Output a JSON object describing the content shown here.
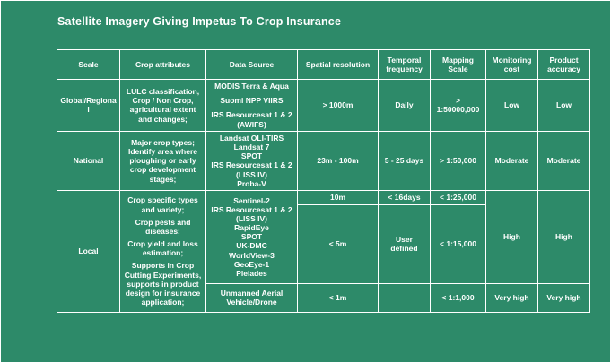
{
  "title": "Satellite Imagery Giving Impetus To Crop Insurance",
  "colors": {
    "background": "#2D8A69",
    "grid": "#FFFFFF",
    "text": "#FFFFFF"
  },
  "table": {
    "headers": [
      "Scale",
      "Crop attributes",
      "Data Source",
      "Spatial resolution",
      "Temporal frequency",
      "Mapping Scale",
      "Monitoring cost",
      "Product accuracy"
    ],
    "rows": {
      "global": {
        "scale": "Global/Regional",
        "attributes": "LULC classification, Crop / Non Crop, agricultural extent and changes;",
        "sources": [
          "MODIS Terra & Aqua",
          "Suomi NPP VIIRS",
          "IRS Resourcesat 1 & 2 (AWIFS)"
        ],
        "spatial": "> 1000m",
        "temporal": "Daily",
        "mapping": "> 1:50000,000",
        "cost": "Low",
        "accuracy": "Low"
      },
      "national": {
        "scale": "National",
        "attributes": "Major crop types; Identify area where ploughing or early crop development stages;",
        "sources": [
          "Landsat OLI-TIRS",
          "Landsat 7",
          "SPOT",
          "IRS Resourcesat 1 & 2 (LISS IV)",
          "Proba-V"
        ],
        "spatial": "23m - 100m",
        "temporal": "5 - 25 days",
        "mapping": "> 1:50,000",
        "cost": "Moderate",
        "accuracy": "Moderate"
      },
      "local": {
        "scale": "Local",
        "attributes": [
          "Crop specific types and variety;",
          "Crop pests and diseases;",
          "Crop yield and loss estimation;",
          "Supports in Crop Cutting Experiments, supports in product design for insurance application;"
        ],
        "satellite_sources": [
          "Sentinel-2",
          "IRS Resourcesat 1 & 2 (LISS IV)",
          "RapidEye",
          "SPOT",
          "UK-DMC",
          "WorldView-3",
          "GeoEye-1",
          "Pleiades"
        ],
        "sub_10m": {
          "spatial": "10m",
          "temporal": "< 16days",
          "mapping": "< 1:25,000"
        },
        "sub_5m": {
          "spatial": "< 5m",
          "temporal": "User defined",
          "mapping": "< 1:15,000"
        },
        "cost": "High",
        "accuracy": "High",
        "drone": {
          "source": "Unmanned Aerial Vehicle/Drone",
          "spatial": "< 1m",
          "temporal": "",
          "mapping": "< 1:1,000",
          "cost": "Very high",
          "accuracy": "Very high"
        }
      }
    }
  }
}
